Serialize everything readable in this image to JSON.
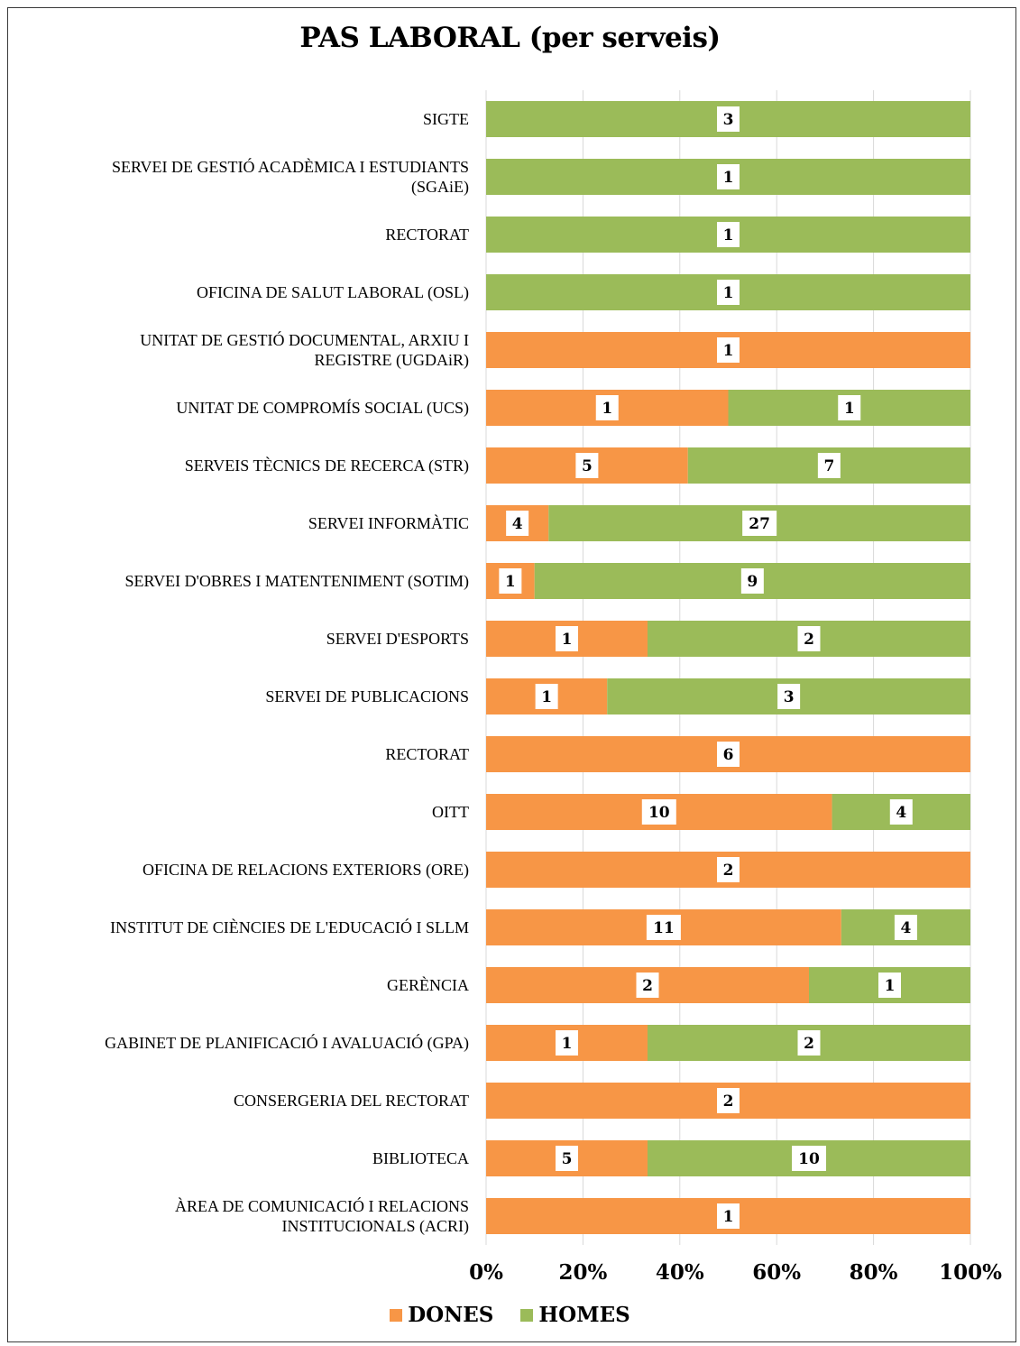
{
  "chart_data": {
    "type": "bar",
    "orientation": "horizontal",
    "stacked": "percent",
    "title": "PAS LABORAL (per serveis)",
    "categories": [
      "SIGTE",
      "SERVEI DE GESTIÓ ACADÈMICA I ESTUDIANTS (SGAiE)",
      "RECTORAT",
      "OFICINA DE SALUT LABORAL (OSL)",
      "UNITAT DE GESTIÓ DOCUMENTAL, ARXIU I REGISTRE (UGDAiR)",
      "UNITAT DE COMPROMÍS SOCIAL (UCS)",
      "SERVEIS TÈCNICS DE RECERCA (STR)",
      "SERVEI INFORMÀTIC",
      "SERVEI D'OBRES I MATENTENIMENT (SOTIM)",
      "SERVEI D'ESPORTS",
      "SERVEI DE PUBLICACIONS",
      "RECTORAT",
      "OITT",
      "OFICINA DE RELACIONS EXTERIORS (ORE)",
      "INSTITUT DE CIÈNCIES DE L'EDUCACIÓ I SLLM",
      "GERÈNCIA",
      "GABINET DE PLANIFICACIÓ I AVALUACIÓ (GPA)",
      "CONSERGERIA DEL RECTORAT",
      "BIBLIOTECA",
      "ÀREA DE COMUNICACIÓ I RELACIONS INSTITUCIONALS (ACRI)"
    ],
    "series": [
      {
        "name": "DONES",
        "color": "#F79646",
        "values": [
          0,
          0,
          0,
          0,
          1,
          1,
          5,
          4,
          1,
          1,
          1,
          6,
          10,
          2,
          11,
          2,
          1,
          2,
          5,
          1
        ]
      },
      {
        "name": "HOMES",
        "color": "#9BBB59",
        "values": [
          3,
          1,
          1,
          1,
          0,
          1,
          7,
          27,
          9,
          2,
          3,
          0,
          4,
          0,
          4,
          1,
          2,
          0,
          10,
          0
        ]
      }
    ],
    "x_ticks": [
      "0%",
      "20%",
      "40%",
      "60%",
      "80%",
      "100%"
    ],
    "xlim": [
      0,
      100
    ],
    "grid": true,
    "legend": "bottom"
  }
}
